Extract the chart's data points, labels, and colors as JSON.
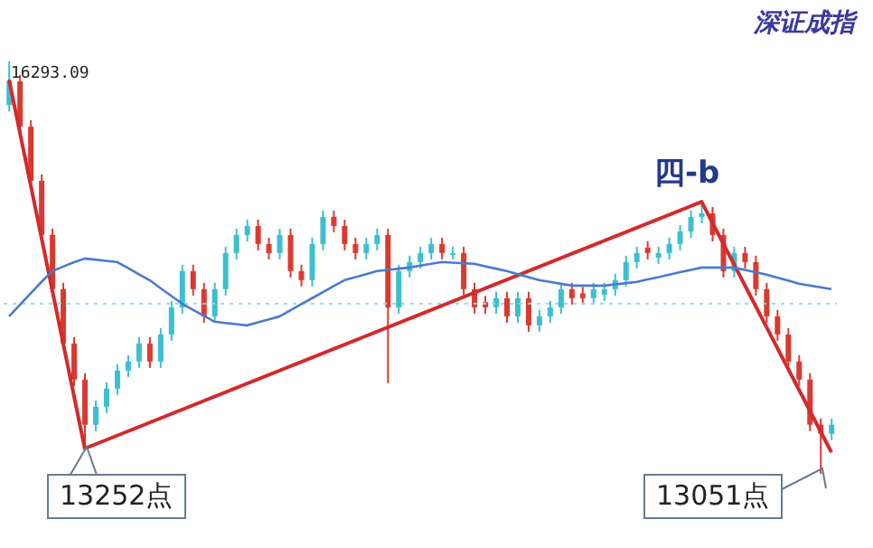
{
  "chart_data": {
    "type": "candlestick",
    "title": "深证成指",
    "categories": [
      null,
      null,
      null,
      null,
      null,
      null,
      null,
      null,
      null,
      null,
      null,
      null,
      null,
      null,
      null,
      null,
      null,
      null,
      null,
      null,
      null,
      null,
      null,
      null,
      null,
      null,
      null,
      null,
      null,
      null,
      null,
      null,
      null,
      null,
      null,
      null,
      null,
      null,
      null,
      null,
      null,
      null,
      null,
      null,
      null,
      null,
      null,
      null,
      null,
      null,
      null,
      null,
      null,
      null,
      null,
      null,
      null,
      null,
      null,
      null,
      null,
      null,
      null,
      null,
      null,
      null,
      null,
      null,
      null,
      null,
      null,
      null,
      null,
      null,
      null,
      null,
      null
    ],
    "ohlc": [
      [
        15950,
        16293.09,
        15900,
        16137
      ],
      [
        16137,
        16187,
        15731,
        15781
      ],
      [
        15781,
        15831,
        15305,
        15355
      ],
      [
        15355,
        15405,
        14879,
        14929
      ],
      [
        14929,
        14979,
        14453,
        14503
      ],
      [
        14503,
        14553,
        14026,
        14076
      ],
      [
        14076,
        14126,
        13742,
        13792
      ],
      [
        13792,
        13842,
        13252,
        13437
      ],
      [
        13437,
        13629,
        13387,
        13579
      ],
      [
        13579,
        13771,
        13529,
        13721
      ],
      [
        13721,
        13913,
        13671,
        13863
      ],
      [
        13863,
        13984,
        13813,
        13934
      ],
      [
        13934,
        14126,
        13884,
        14076
      ],
      [
        14076,
        14126,
        13884,
        13934
      ],
      [
        13934,
        14197,
        13884,
        14147
      ],
      [
        14147,
        14410,
        14097,
        14360
      ],
      [
        14360,
        14695,
        14310,
        14645
      ],
      [
        14645,
        14695,
        14453,
        14503
      ],
      [
        14503,
        14553,
        14239,
        14289
      ],
      [
        14289,
        14553,
        14239,
        14503
      ],
      [
        14503,
        14837,
        14453,
        14787
      ],
      [
        14787,
        14979,
        14737,
        14929
      ],
      [
        14929,
        15050,
        14879,
        15000
      ],
      [
        15000,
        15050,
        14808,
        14858
      ],
      [
        14858,
        14908,
        14737,
        14787
      ],
      [
        14787,
        14979,
        14737,
        14929
      ],
      [
        14929,
        14979,
        14595,
        14645
      ],
      [
        14645,
        14695,
        14524,
        14574
      ],
      [
        14574,
        14908,
        14524,
        14858
      ],
      [
        14858,
        15121,
        14808,
        15071
      ],
      [
        15071,
        15121,
        14950,
        15000
      ],
      [
        15000,
        15050,
        14808,
        14858
      ],
      [
        14858,
        14908,
        14737,
        14787
      ],
      [
        14787,
        14908,
        14737,
        14858
      ],
      [
        14858,
        14979,
        14808,
        14929
      ],
      [
        14929,
        14979,
        13764,
        14360
      ],
      [
        14360,
        14695,
        14310,
        14645
      ],
      [
        14645,
        14766,
        14595,
        14716
      ],
      [
        14716,
        14837,
        14666,
        14787
      ],
      [
        14787,
        14908,
        14737,
        14858
      ],
      [
        14858,
        14908,
        14737,
        14787
      ],
      [
        14787,
        14837,
        14737,
        14787
      ],
      [
        14787,
        14837,
        14453,
        14503
      ],
      [
        14503,
        14553,
        14310,
        14360
      ],
      [
        14400,
        14450,
        14310,
        14360
      ],
      [
        14360,
        14482,
        14310,
        14432
      ],
      [
        14432,
        14482,
        14239,
        14289
      ],
      [
        14289,
        14482,
        14239,
        14432
      ],
      [
        14432,
        14482,
        14168,
        14218
      ],
      [
        14218,
        14339,
        14168,
        14289
      ],
      [
        14289,
        14410,
        14239,
        14360
      ],
      [
        14360,
        14553,
        14310,
        14503
      ],
      [
        14503,
        14553,
        14382,
        14432
      ],
      [
        14470,
        14520,
        14382,
        14432
      ],
      [
        14432,
        14553,
        14382,
        14503
      ],
      [
        14460,
        14553,
        14410,
        14503
      ],
      [
        14503,
        14624,
        14453,
        14574
      ],
      [
        14574,
        14766,
        14524,
        14716
      ],
      [
        14716,
        14837,
        14666,
        14787
      ],
      [
        14830,
        14880,
        14737,
        14787
      ],
      [
        14750,
        14837,
        14700,
        14787
      ],
      [
        14787,
        14908,
        14737,
        14858
      ],
      [
        14858,
        15007,
        14808,
        14957
      ],
      [
        14957,
        15121,
        14907,
        15071
      ],
      [
        15071,
        15185,
        15021,
        15099
      ],
      [
        15099,
        15149,
        14879,
        14929
      ],
      [
        14929,
        14979,
        14595,
        14645
      ],
      [
        14645,
        14837,
        14595,
        14787
      ],
      [
        14787,
        14837,
        14666,
        14716
      ],
      [
        14716,
        14766,
        14453,
        14503
      ],
      [
        14503,
        14553,
        14239,
        14289
      ],
      [
        14289,
        14339,
        14097,
        14147
      ],
      [
        14147,
        14197,
        13884,
        13934
      ],
      [
        13934,
        13984,
        13742,
        13792
      ],
      [
        13792,
        13842,
        13387,
        13437
      ],
      [
        13437,
        13487,
        13051,
        13366
      ],
      [
        13366,
        13487,
        13316,
        13437
      ]
    ],
    "colors": [
      "#3cbfd0",
      "#d93a30",
      "#d93a30",
      "#d93a30",
      "#d93a30",
      "#d93a30",
      "#d93a30",
      "#d93a30",
      "#3cbfd0",
      "#3cbfd0",
      "#3cbfd0",
      "#3cbfd0",
      "#3cbfd0",
      "#d93a30",
      "#3cbfd0",
      "#3cbfd0",
      "#3cbfd0",
      "#d93a30",
      "#d93a30",
      "#3cbfd0",
      "#3cbfd0",
      "#3cbfd0",
      "#3cbfd0",
      "#d93a30",
      "#d93a30",
      "#3cbfd0",
      "#d93a30",
      "#d93a30",
      "#3cbfd0",
      "#3cbfd0",
      "#d93a30",
      "#d93a30",
      "#d93a30",
      "#3cbfd0",
      "#3cbfd0",
      "#d93a30",
      "#3cbfd0",
      "#3cbfd0",
      "#3cbfd0",
      "#3cbfd0",
      "#d93a30",
      "#3cbfd0",
      "#d93a30",
      "#d93a30",
      "#d93a30",
      "#3cbfd0",
      "#d93a30",
      "#3cbfd0",
      "#d93a30",
      "#3cbfd0",
      "#3cbfd0",
      "#3cbfd0",
      "#d93a30",
      "#d93a30",
      "#3cbfd0",
      "#3cbfd0",
      "#3cbfd0",
      "#3cbfd0",
      "#3cbfd0",
      "#d93a30",
      "#3cbfd0",
      "#3cbfd0",
      "#3cbfd0",
      "#3cbfd0",
      "#3cbfd0",
      "#d93a30",
      "#d93a30",
      "#3cbfd0",
      "#d93a30",
      "#d93a30",
      "#d93a30",
      "#d93a30",
      "#d93a30",
      "#d93a30",
      "#d93a30",
      "#d93a30",
      "#3cbfd0"
    ],
    "series": [
      {
        "type": "line",
        "color": "#d42a2a",
        "values": [
          16150,
          null,
          null,
          null,
          null,
          null,
          null,
          13250,
          null,
          null,
          null,
          null,
          null,
          null,
          null,
          null,
          null,
          null,
          null,
          null,
          null,
          null,
          null,
          null,
          null,
          null,
          null,
          null,
          null,
          null,
          null,
          null,
          null,
          null,
          null,
          null,
          null,
          null,
          null,
          null,
          null,
          null,
          null,
          null,
          null,
          null,
          null,
          null,
          null,
          null,
          null,
          null,
          null,
          null,
          null,
          null,
          null,
          null,
          null,
          null,
          null,
          null,
          null,
          null,
          15190,
          null,
          null,
          null,
          null,
          null,
          null,
          null,
          null,
          null,
          null,
          null,
          13220
        ]
      },
      {
        "type": "line",
        "color": "#4a7ad0",
        "values": [
          14289,
          14380,
          14470,
          14560,
          14645,
          14680,
          14715,
          14744,
          14735,
          14725,
          14716,
          14670,
          14620,
          14574,
          14510,
          14450,
          14389,
          14340,
          14295,
          14247,
          14237,
          14228,
          14218,
          14242,
          14265,
          14289,
          14337,
          14385,
          14432,
          14480,
          14527,
          14574,
          14598,
          14621,
          14645,
          14654,
          14664,
          14673,
          14688,
          14702,
          14716,
          14711,
          14707,
          14702,
          14683,
          14664,
          14645,
          14621,
          14598,
          14574,
          14560,
          14545,
          14531,
          14531,
          14531,
          14531,
          14541,
          14550,
          14560,
          14579,
          14598,
          14617,
          14636,
          14654,
          14673,
          14673,
          14673,
          14673,
          14654,
          14636,
          14617,
          14593,
          14570,
          14546,
          14532,
          14517,
          14503
        ]
      }
    ],
    "ref_lines": [
      {
        "axis": "y",
        "value": 14389,
        "color": "#8fdcea",
        "line_style": "dotted"
      }
    ],
    "annotations": [
      "16293.09",
      "四-b",
      "13252点",
      "13051点"
    ]
  }
}
